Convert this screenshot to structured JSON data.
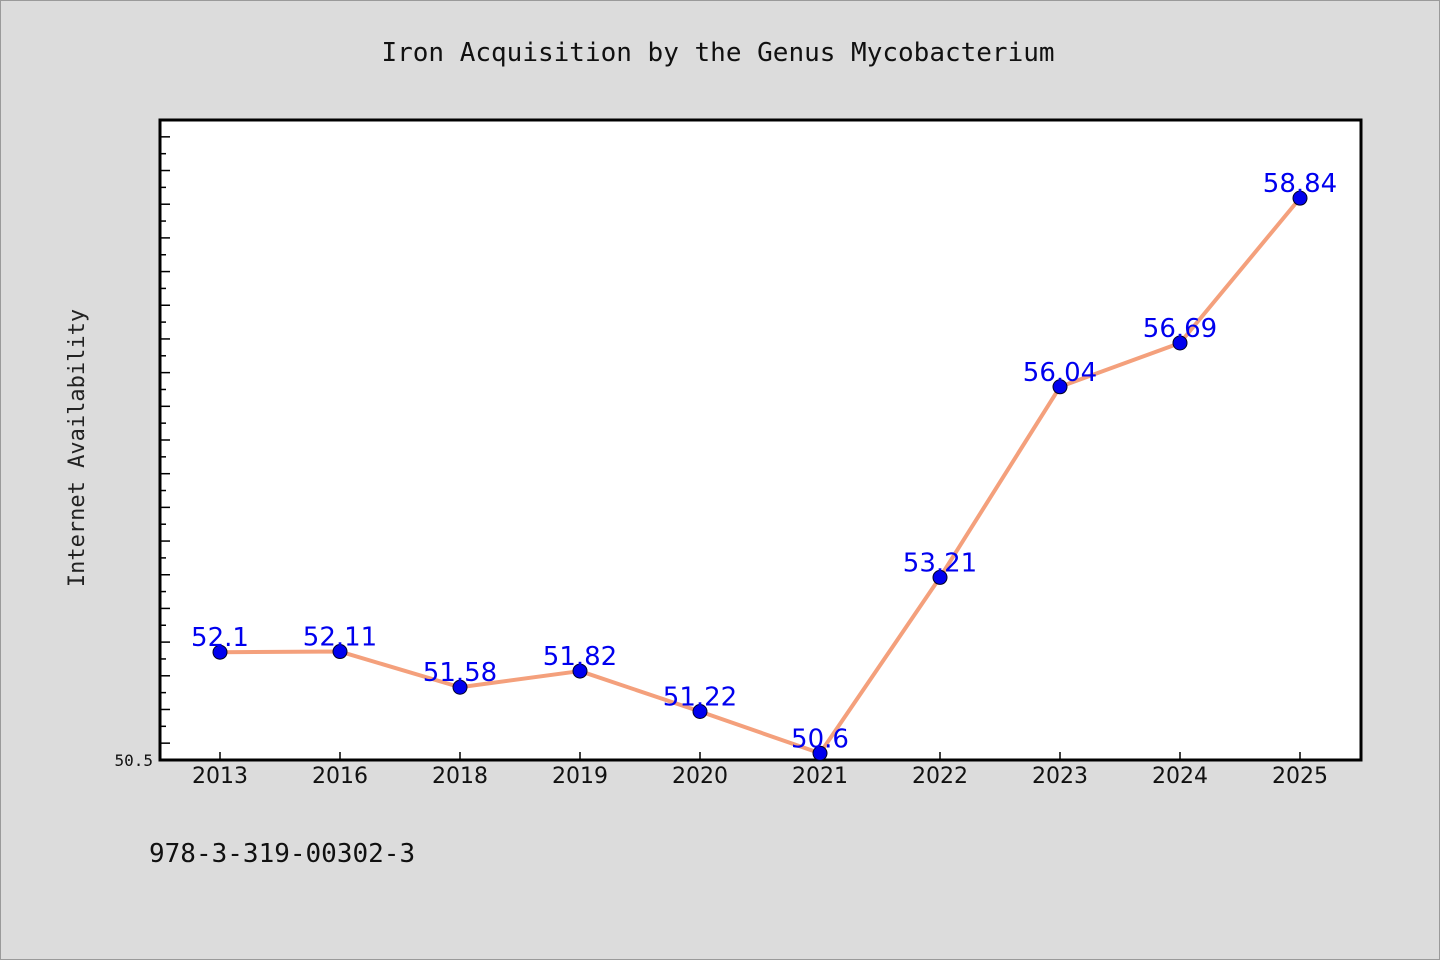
{
  "chart_data": {
    "type": "line",
    "title": "Iron Acquisition by the Genus Mycobacterium",
    "xlabel": "",
    "ylabel": "Internet Availability",
    "categories": [
      "2013",
      "2016",
      "2018",
      "2019",
      "2020",
      "2021",
      "2022",
      "2023",
      "2024",
      "2025"
    ],
    "series": [
      {
        "values": [
          52.1,
          52.11,
          51.58,
          51.82,
          51.22,
          50.6,
          53.21,
          56.04,
          56.69,
          58.84
        ],
        "labels": [
          "52.1",
          "52.11",
          "51.58",
          "51.82",
          "51.22",
          "50.6",
          "53.21",
          "56.04",
          "56.69",
          "58.84"
        ]
      }
    ],
    "ylim": [
      50.5,
      60.0
    ],
    "yticks_labeled": [
      "50.5"
    ],
    "grid": false,
    "legend": "none",
    "colors": {
      "line": "#f4a07c",
      "marker": "#0000ee",
      "data_label": "#0000ee",
      "plot_bg": "#ffffff",
      "page_bg": "#dcdcdc"
    }
  },
  "footer": {
    "isbn": "978-3-319-00302-3"
  }
}
